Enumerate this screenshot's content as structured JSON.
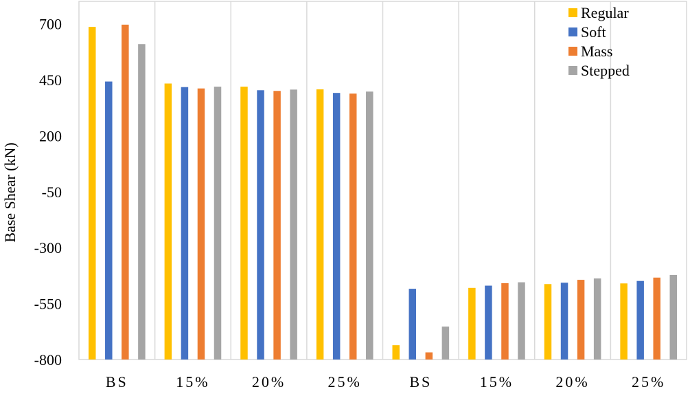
{
  "chart_data": {
    "type": "bar",
    "title": "",
    "xlabel": "",
    "ylabel": "Base Shear (kN)",
    "ylim": [
      -800,
      800
    ],
    "yticks": [
      700,
      450,
      200,
      -50,
      -300,
      -550,
      -800
    ],
    "grid": "vertical separators",
    "legend_position": "top-right",
    "categories": [
      "BS",
      "15%",
      "20%",
      "25%",
      "BS",
      "15%",
      "20%",
      "25%"
    ],
    "series": [
      {
        "name": "Regular",
        "color": "#FFC000",
        "values": [
          686,
          433,
          419,
          407,
          -736,
          -480,
          -463,
          -460
        ]
      },
      {
        "name": "Soft",
        "color": "#4472C4",
        "values": [
          442,
          417,
          403,
          391,
          -484,
          -470,
          -457,
          -449
        ]
      },
      {
        "name": "Mass",
        "color": "#ED7D31",
        "values": [
          696,
          411,
          400,
          388,
          -768,
          -459,
          -444,
          -434
        ]
      },
      {
        "name": "Stepped",
        "color": "#A5A5A5",
        "values": [
          609,
          419,
          406,
          397,
          -653,
          -455,
          -438,
          -422
        ]
      }
    ]
  }
}
